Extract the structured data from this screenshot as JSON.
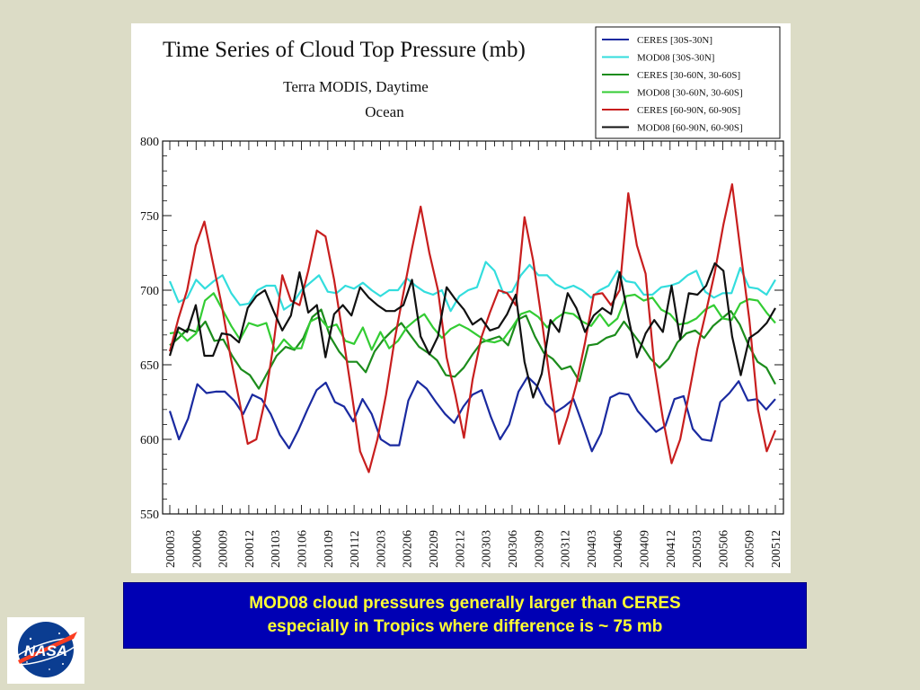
{
  "chart_data": {
    "type": "line",
    "title": "Time Series of Cloud Top Pressure (mb)",
    "subtitle_lines": [
      "Terra MODIS, Daytime",
      "Ocean"
    ],
    "xlabel": "",
    "ylabel": "",
    "ylim": [
      550,
      800
    ],
    "y_ticks": [
      550,
      600,
      650,
      700,
      750,
      800
    ],
    "x_start": "200003",
    "x_end": "200512",
    "x_tick_labels": [
      "200003",
      "200006",
      "200009",
      "200012",
      "200103",
      "200106",
      "200109",
      "200112",
      "200203",
      "200206",
      "200209",
      "200212",
      "200303",
      "200306",
      "200309",
      "200312",
      "200403",
      "200406",
      "200409",
      "200412",
      "200503",
      "200506",
      "200509",
      "200512"
    ],
    "legend_position": "top-right",
    "grid": false,
    "series": [
      {
        "name": "CERES [30S-30N]",
        "color": "#1a2aa0",
        "values": [
          619,
          600,
          614,
          637,
          631,
          632,
          632,
          626,
          617,
          630,
          627,
          617,
          603,
          594,
          606,
          620,
          633,
          638,
          625,
          622,
          612,
          627,
          617,
          600,
          596,
          596,
          626,
          639,
          634,
          625,
          617,
          611,
          622,
          630,
          633,
          615,
          600,
          610,
          632,
          642,
          636,
          624,
          618,
          622,
          627,
          610,
          592,
          604,
          628,
          631,
          630,
          619,
          612,
          605,
          609,
          627,
          629,
          607,
          600,
          599,
          625,
          631,
          639,
          626,
          627,
          620,
          627
        ]
      },
      {
        "name": "MOD08 [30S-30N]",
        "color": "#33dddd",
        "values": [
          706,
          692,
          695,
          707,
          701,
          706,
          710,
          698,
          690,
          691,
          700,
          703,
          703,
          687,
          691,
          700,
          705,
          710,
          699,
          698,
          703,
          701,
          705,
          700,
          696,
          700,
          700,
          708,
          703,
          699,
          697,
          700,
          686,
          696,
          700,
          702,
          719,
          713,
          698,
          699,
          710,
          717,
          710,
          710,
          704,
          701,
          703,
          700,
          695,
          700,
          703,
          713,
          706,
          705,
          697,
          697,
          702,
          703,
          705,
          710,
          713,
          699,
          695,
          698,
          698,
          715,
          702,
          701,
          697,
          707
        ]
      },
      {
        "name": "CERES [30-60N, 30-60S]",
        "color": "#1c8c1c",
        "values": [
          663,
          668,
          674,
          672,
          679,
          666,
          667,
          656,
          647,
          643,
          634,
          645,
          656,
          662,
          660,
          668,
          682,
          687,
          669,
          659,
          652,
          652,
          645,
          659,
          667,
          673,
          678,
          670,
          662,
          658,
          653,
          643,
          642,
          648,
          657,
          665,
          667,
          669,
          663,
          680,
          683,
          669,
          658,
          654,
          647,
          649,
          639,
          663,
          664,
          668,
          670,
          679,
          671,
          663,
          654,
          648,
          654,
          665,
          671,
          673,
          668,
          676,
          681,
          686,
          677,
          663,
          652,
          648,
          637
        ]
      },
      {
        "name": "MOD08 [30-60N, 30-60S]",
        "color": "#33cc33",
        "values": [
          671,
          672,
          666,
          671,
          693,
          698,
          687,
          676,
          667,
          678,
          676,
          678,
          659,
          667,
          661,
          661,
          679,
          682,
          675,
          677,
          666,
          664,
          675,
          660,
          672,
          661,
          666,
          675,
          680,
          684,
          675,
          668,
          674,
          677,
          674,
          670,
          666,
          665,
          667,
          675,
          684,
          686,
          682,
          675,
          681,
          685,
          684,
          679,
          676,
          684,
          676,
          681,
          696,
          697,
          693,
          695,
          687,
          684,
          677,
          678,
          681,
          687,
          690,
          681,
          680,
          691,
          694,
          693,
          685,
          678
        ]
      },
      {
        "name": "CERES [60-90N, 60-90S]",
        "color": "#c81e1e",
        "values": [
          659,
          681,
          700,
          730,
          746,
          718,
          690,
          656,
          627,
          597,
          600,
          626,
          664,
          710,
          693,
          690,
          713,
          740,
          736,
          707,
          670,
          632,
          592,
          578,
          600,
          630,
          667,
          698,
          728,
          756,
          725,
          700,
          655,
          630,
          601,
          640,
          668,
          685,
          700,
          698,
          690,
          749,
          720,
          680,
          637,
          597,
          615,
          637,
          665,
          697,
          698,
          690,
          700,
          765,
          730,
          711,
          650,
          614,
          584,
          600,
          630,
          661,
          686,
          712,
          744,
          771,
          725,
          680,
          620,
          592,
          606
        ]
      },
      {
        "name": "MOD08 [60-90N, 60-90S]",
        "color": "#111111",
        "values": [
          656,
          675,
          672,
          690,
          656,
          656,
          671,
          670,
          665,
          688,
          696,
          700,
          686,
          673,
          683,
          712,
          685,
          690,
          655,
          684,
          690,
          683,
          702,
          695,
          690,
          686,
          686,
          690,
          707,
          669,
          657,
          669,
          702,
          694,
          687,
          677,
          681,
          673,
          675,
          684,
          697,
          652,
          628,
          644,
          680,
          672,
          698,
          688,
          672,
          683,
          688,
          684,
          712,
          682,
          655,
          671,
          680,
          672,
          703,
          667,
          698,
          697,
          703,
          718,
          713,
          669,
          643,
          668,
          672,
          678,
          688
        ]
      }
    ]
  },
  "note": {
    "line1": "MOD08 cloud pressures generally larger than CERES",
    "line2": "especially in Tropics where difference is ~ 75 mb"
  },
  "logo": {
    "text": "NASA"
  },
  "colors": {
    "background": "#dcdcc6",
    "note_bg": "#0000b4",
    "note_text": "#ffff33"
  }
}
